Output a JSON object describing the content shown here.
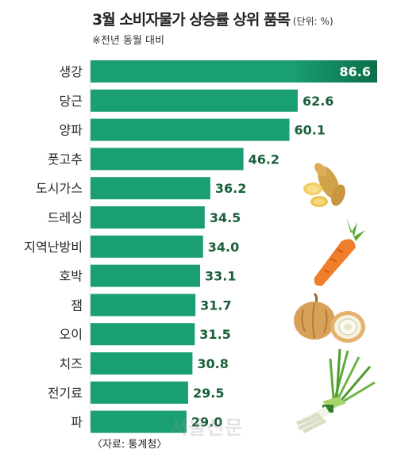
{
  "header": {
    "title": "3월 소비자물가 상승률 상위 품목",
    "unit": "(단위: %)",
    "subtitle": "※전년 동월 대비"
  },
  "footer": {
    "source": "〈자료: 통계청〉",
    "watermark": "서울신문"
  },
  "colors": {
    "bar": "#1a9f72",
    "bar_dark": "#0b6e48",
    "value_text": "#1a5f3a",
    "top_value_text": "#ffffff"
  },
  "chart_data": {
    "type": "bar",
    "orientation": "horizontal",
    "title": "3월 소비자물가 상승률 상위 품목",
    "subtitle": "※전년 동월 대비",
    "unit": "%",
    "categories": [
      "생강",
      "당근",
      "양파",
      "풋고추",
      "도시가스",
      "드레싱",
      "지역난방비",
      "호박",
      "잼",
      "오이",
      "치즈",
      "전기료",
      "파"
    ],
    "values": [
      86.6,
      62.6,
      60.1,
      46.2,
      36.2,
      34.5,
      34.0,
      33.1,
      31.7,
      31.5,
      30.8,
      29.5,
      29.0
    ],
    "value_labels": [
      "86.6",
      "62.6",
      "60.1",
      "46.2",
      "36.2",
      "34.5",
      "34.0",
      "33.1",
      "31.7",
      "31.5",
      "30.8",
      "29.5",
      "29.0"
    ],
    "xlim": [
      0,
      86.6
    ],
    "grid": false,
    "legend": "none"
  },
  "illustrations": [
    "ginger-icon",
    "carrot-icon",
    "onion-icon",
    "green-onion-icon"
  ]
}
